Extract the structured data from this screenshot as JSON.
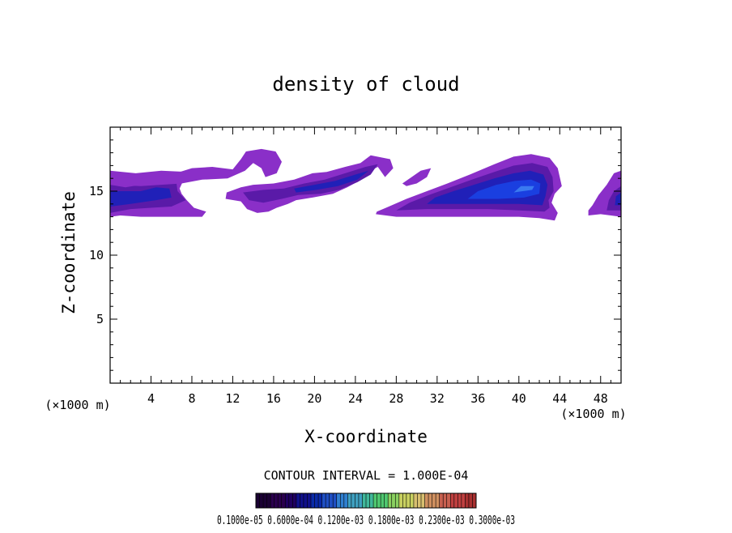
{
  "chart_data": {
    "type": "heatmap",
    "title": "density of cloud",
    "xlabel": "X-coordinate",
    "ylabel": "Z-coordinate",
    "x_unit_left": "(×1000 m)",
    "x_unit_right": "(×1000 m)",
    "xlim": [
      0,
      50
    ],
    "ylim": [
      0,
      20
    ],
    "x_ticks": [
      4,
      8,
      12,
      16,
      20,
      24,
      28,
      32,
      36,
      40,
      44,
      48
    ],
    "y_ticks": [
      5,
      10,
      15
    ],
    "contour_interval_label": "CONTOUR INTERVAL = 1.000E-04",
    "colorbar_labels_text": "0.1000e-05 0.6000e-04 0.1200e-03 0.1800e-03 0.2300e-03 0.3000e-03",
    "colorbar_colors": [
      "#1a0033",
      "#2a004d",
      "#200060",
      "#10108a",
      "#0a2aa8",
      "#1f4fc4",
      "#2f7fd0",
      "#3fa0c0",
      "#40b89a",
      "#4fc870",
      "#8ad060",
      "#c8d060",
      "#d8c070",
      "#d09060",
      "#c86050",
      "#c04040",
      "#a83030"
    ],
    "field_colors": {
      "outer": "#8a2fc8",
      "mid": "#5a1aa8",
      "inner": "#2020b8",
      "core": "#1a3fe0",
      "peak": "#3a7af0"
    },
    "cloud_regions": [
      {
        "name": "left-band",
        "level": 1,
        "points": [
          [
            0,
            13
          ],
          [
            1,
            13.1
          ],
          [
            3,
            13
          ],
          [
            6,
            13
          ],
          [
            9,
            13
          ],
          [
            9.4,
            13.4
          ],
          [
            8.2,
            13.7
          ],
          [
            7.5,
            14.3
          ],
          [
            7,
            14.8
          ],
          [
            6.8,
            15.2
          ],
          [
            7.2,
            15.9
          ],
          [
            7.6,
            16.5
          ],
          [
            5,
            16.6
          ],
          [
            2.5,
            16.4
          ],
          [
            0,
            16.6
          ]
        ]
      },
      {
        "name": "left-band",
        "level": 2,
        "points": [
          [
            0,
            13.3
          ],
          [
            2,
            13.6
          ],
          [
            4,
            13.7
          ],
          [
            6,
            13.8
          ],
          [
            7.4,
            14.3
          ],
          [
            6.6,
            15
          ],
          [
            6.5,
            15.6
          ],
          [
            5,
            15.8
          ],
          [
            3,
            15.5
          ],
          [
            1.5,
            15.3
          ],
          [
            0,
            15.5
          ]
        ]
      },
      {
        "name": "left-band",
        "level": 3,
        "points": [
          [
            0,
            13.8
          ],
          [
            2,
            14
          ],
          [
            4.5,
            14.3
          ],
          [
            6,
            14.5
          ],
          [
            5.8,
            15.2
          ],
          [
            4.5,
            15.3
          ],
          [
            3,
            15
          ],
          [
            0,
            15
          ]
        ]
      },
      {
        "name": "upper-left-layer",
        "level": 1,
        "points": [
          [
            0,
            16.1
          ],
          [
            3,
            16
          ],
          [
            6,
            16.3
          ],
          [
            8,
            16.8
          ],
          [
            10,
            16.9
          ],
          [
            12,
            16.7
          ],
          [
            12.8,
            17.5
          ],
          [
            13.3,
            18.1
          ],
          [
            14.8,
            18.3
          ],
          [
            16.2,
            18.1
          ],
          [
            16.8,
            17.3
          ],
          [
            16.3,
            16.4
          ],
          [
            15.2,
            16.1
          ],
          [
            14.8,
            16.8
          ],
          [
            14,
            17.2
          ],
          [
            13.2,
            16.6
          ],
          [
            11.5,
            16
          ],
          [
            9,
            15.9
          ],
          [
            7,
            15.6
          ],
          [
            5,
            15.5
          ],
          [
            3,
            15.4
          ],
          [
            0,
            15.5
          ]
        ]
      },
      {
        "name": "middle-streak",
        "level": 1,
        "points": [
          [
            11.4,
            14.9
          ],
          [
            12.8,
            15.3
          ],
          [
            14,
            15.5
          ],
          [
            16,
            15.6
          ],
          [
            18,
            15.9
          ],
          [
            19.8,
            16.4
          ],
          [
            21.2,
            16.5
          ],
          [
            23,
            16.9
          ],
          [
            24.5,
            17.2
          ],
          [
            25.5,
            17.8
          ],
          [
            27.4,
            17.5
          ],
          [
            27.7,
            16.8
          ],
          [
            26.9,
            16.1
          ],
          [
            26.2,
            16.9
          ],
          [
            25.5,
            16.6
          ],
          [
            24.6,
            15.9
          ],
          [
            23.2,
            15.3
          ],
          [
            21.8,
            14.8
          ],
          [
            19.8,
            14.5
          ],
          [
            18.2,
            14.3
          ],
          [
            17.4,
            14
          ],
          [
            16.3,
            13.7
          ],
          [
            15.5,
            13.4
          ],
          [
            14.4,
            13.3
          ],
          [
            13.4,
            13.6
          ],
          [
            12.8,
            14.2
          ],
          [
            11.3,
            14.4
          ]
        ]
      },
      {
        "name": "middle-streak",
        "level": 2,
        "points": [
          [
            13,
            14.9
          ],
          [
            15,
            15.1
          ],
          [
            17,
            15.2
          ],
          [
            19,
            15.6
          ],
          [
            21,
            15.9
          ],
          [
            23,
            16.4
          ],
          [
            25,
            16.9
          ],
          [
            26.2,
            17.1
          ],
          [
            25.5,
            16.3
          ],
          [
            24.2,
            15.7
          ],
          [
            22.4,
            15.1
          ],
          [
            20.6,
            14.8
          ],
          [
            18.4,
            14.7
          ],
          [
            16.8,
            14.4
          ],
          [
            15,
            14.1
          ],
          [
            13.6,
            14.3
          ]
        ]
      },
      {
        "name": "middle-streak",
        "level": 3,
        "points": [
          [
            18,
            15.2
          ],
          [
            20,
            15.5
          ],
          [
            22,
            15.8
          ],
          [
            24,
            16.3
          ],
          [
            25.3,
            16.6
          ],
          [
            24.2,
            15.9
          ],
          [
            22.3,
            15.4
          ],
          [
            20.2,
            15.1
          ],
          [
            18.2,
            14.9
          ]
        ]
      },
      {
        "name": "small-blob",
        "level": 1,
        "points": [
          [
            28.6,
            15.6
          ],
          [
            29.5,
            16.1
          ],
          [
            30.4,
            16.6
          ],
          [
            31.4,
            16.8
          ],
          [
            31,
            16.1
          ],
          [
            30,
            15.6
          ],
          [
            29,
            15.4
          ]
        ]
      },
      {
        "name": "right-plume",
        "level": 1,
        "points": [
          [
            26,
            13.2
          ],
          [
            28,
            13
          ],
          [
            31,
            13
          ],
          [
            34,
            13
          ],
          [
            37,
            13
          ],
          [
            40,
            13
          ],
          [
            42,
            12.9
          ],
          [
            43.5,
            12.7
          ],
          [
            43.8,
            13.3
          ],
          [
            43.2,
            14.1
          ],
          [
            43.5,
            14.8
          ],
          [
            44.2,
            15.4
          ],
          [
            43.8,
            16.8
          ],
          [
            43,
            17.6
          ],
          [
            41.2,
            17.9
          ],
          [
            39.5,
            17.7
          ],
          [
            37.6,
            17.1
          ],
          [
            35.2,
            16.3
          ],
          [
            33,
            15.6
          ],
          [
            31,
            15
          ],
          [
            29,
            14.4
          ],
          [
            27,
            13.7
          ],
          [
            26.1,
            13.4
          ]
        ]
      },
      {
        "name": "right-plume",
        "level": 2,
        "points": [
          [
            28,
            13.5
          ],
          [
            31,
            13.6
          ],
          [
            34,
            13.6
          ],
          [
            37,
            13.6
          ],
          [
            40,
            13.5
          ],
          [
            42.5,
            13.4
          ],
          [
            43,
            13.7
          ],
          [
            42.9,
            14.3
          ],
          [
            43.4,
            15
          ],
          [
            43.3,
            16.1
          ],
          [
            42.8,
            16.9
          ],
          [
            41.3,
            17.2
          ],
          [
            39.5,
            17
          ],
          [
            37.6,
            16.5
          ],
          [
            35.4,
            15.9
          ],
          [
            33.3,
            15.3
          ],
          [
            31.2,
            14.7
          ],
          [
            29.3,
            14.1
          ]
        ]
      },
      {
        "name": "right-plume",
        "level": 3,
        "points": [
          [
            31,
            14
          ],
          [
            34,
            14
          ],
          [
            37.4,
            14
          ],
          [
            40,
            14
          ],
          [
            42.3,
            13.9
          ],
          [
            42.6,
            14.6
          ],
          [
            42.8,
            15.5
          ],
          [
            42.4,
            16.3
          ],
          [
            41.1,
            16.6
          ],
          [
            39.5,
            16.4
          ],
          [
            37.6,
            16
          ],
          [
            35.6,
            15.5
          ],
          [
            33.6,
            15
          ],
          [
            31.8,
            14.5
          ]
        ]
      },
      {
        "name": "right-plume",
        "level": 4,
        "points": [
          [
            35,
            14.4
          ],
          [
            38,
            14.4
          ],
          [
            40.5,
            14.5
          ],
          [
            42,
            14.8
          ],
          [
            42.1,
            15.6
          ],
          [
            41.2,
            15.9
          ],
          [
            39.6,
            15.8
          ],
          [
            37.8,
            15.5
          ],
          [
            36,
            15
          ]
        ]
      },
      {
        "name": "right-plume",
        "level": 5,
        "points": [
          [
            39.5,
            14.9
          ],
          [
            41.3,
            15.1
          ],
          [
            41.5,
            15.4
          ],
          [
            40.2,
            15.4
          ]
        ]
      },
      {
        "name": "right-edge",
        "level": 1,
        "points": [
          [
            46.8,
            13.1
          ],
          [
            48,
            13.2
          ],
          [
            49,
            13.1
          ],
          [
            50,
            13
          ],
          [
            50,
            16.6
          ],
          [
            49.3,
            16.4
          ],
          [
            48.6,
            15.5
          ],
          [
            47.8,
            14.7
          ],
          [
            47.2,
            13.9
          ],
          [
            46.8,
            13.5
          ]
        ]
      },
      {
        "name": "right-edge",
        "level": 2,
        "points": [
          [
            48.6,
            13.5
          ],
          [
            50,
            13.5
          ],
          [
            50,
            15.4
          ],
          [
            49.3,
            15
          ],
          [
            48.8,
            14.3
          ]
        ]
      },
      {
        "name": "right-edge",
        "level": 3,
        "points": [
          [
            49.4,
            13.9
          ],
          [
            50,
            13.9
          ],
          [
            50,
            14.9
          ],
          [
            49.5,
            14.6
          ]
        ]
      }
    ]
  }
}
